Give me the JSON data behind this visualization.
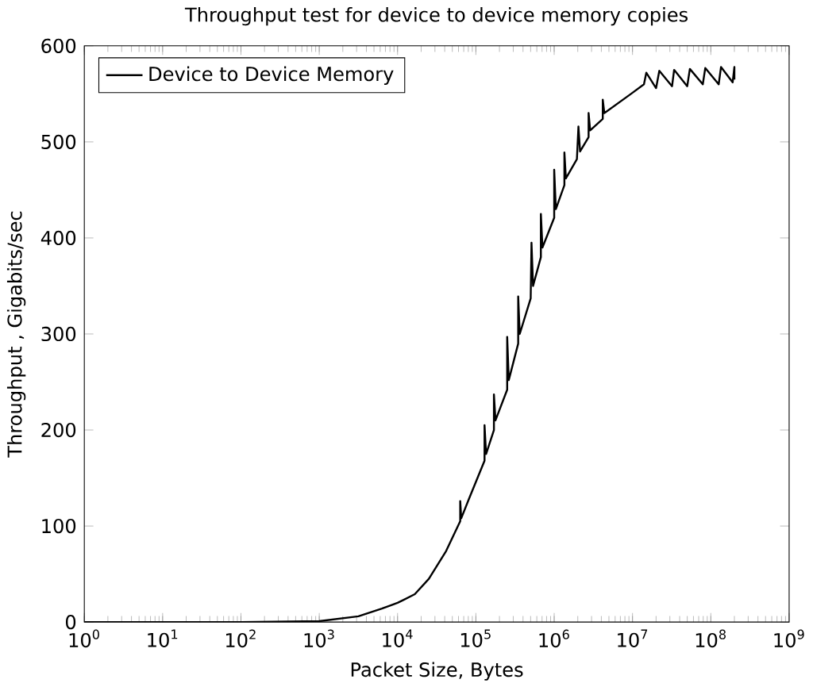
{
  "chart_data": {
    "type": "line",
    "title": "Throughput test for device to device memory copies",
    "xlabel": "Packet Size, Bytes",
    "ylabel": "Throughput , Gigabits/sec",
    "log": "x",
    "legend": "top left",
    "grid": false,
    "marker": "none",
    "line_style": "solid",
    "xlim": [
      1,
      1000000000
    ],
    "ylim": [
      0,
      600
    ],
    "xticks": [
      {
        "value": 1,
        "label": "10$^{0}$"
      },
      {
        "value": 10,
        "label": "10$^{1}$"
      },
      {
        "value": 100,
        "label": "10$^{2}$"
      },
      {
        "value": 1000,
        "label": "10$^{3}$"
      },
      {
        "value": 10000,
        "label": "10$^{4}$"
      },
      {
        "value": 100000,
        "label": "10$^{5}$"
      },
      {
        "value": 1000000,
        "label": "10$^{6}$"
      },
      {
        "value": 10000000,
        "label": "10$^{7}$"
      },
      {
        "value": 100000000,
        "label": "10$^{8}$"
      },
      {
        "value": 1000000000,
        "label": "10$^{9}$"
      }
    ],
    "yticks": [
      0,
      100,
      200,
      300,
      400,
      500,
      600
    ],
    "series": [
      {
        "name": "Device to Device  Memory",
        "color": "#000000",
        "x": [
          1,
          10,
          100,
          1000,
          3162,
          6310,
          10000,
          16600,
          25100,
          41700,
          63100,
          63100,
          65000,
          81300,
          129000,
          129000,
          135000,
          170000,
          170000,
          178000,
          251000,
          251000,
          263000,
          347000,
          347000,
          363000,
          501000,
          513000,
          537000,
          676000,
          676000,
          708000,
          1000000,
          1000000,
          1050000,
          1350000,
          1350000,
          1410000,
          1950000,
          2040000,
          2140000,
          2750000,
          2750000,
          2880000,
          4170000,
          4170000,
          4370000,
          9550000,
          14000000,
          15000000,
          20000000,
          22000000,
          32000000,
          34000000,
          50000000,
          54000000,
          79000000,
          85000000,
          126000000,
          135000000,
          190000000,
          200000000,
          200000000
        ],
        "values": [
          0,
          0,
          0,
          1,
          6,
          14,
          20,
          29,
          45,
          74,
          105,
          126,
          108,
          128,
          168,
          205,
          175,
          200,
          237,
          210,
          242,
          297,
          252,
          290,
          339,
          300,
          337,
          395,
          350,
          380,
          425,
          390,
          421,
          471,
          430,
          455,
          489,
          462,
          482,
          516,
          490,
          505,
          530,
          512,
          524,
          544,
          530,
          550,
          560,
          572,
          556,
          574,
          558,
          575,
          558,
          576,
          560,
          577,
          560,
          578,
          562,
          578,
          565
        ]
      }
    ]
  }
}
